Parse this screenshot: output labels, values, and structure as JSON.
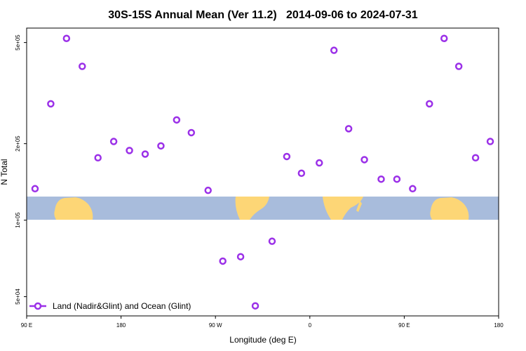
{
  "chart_data": {
    "type": "scatter",
    "title": "30S-15S Annual Mean (Ver 11.2)   2014-09-06 to 2024-07-31",
    "x_label": "Longitude (deg E)",
    "y_label": "N Total",
    "log_y": true,
    "legend": "lower left",
    "grid": false,
    "xlim": [
      90,
      540
    ],
    "xticks": [
      {
        "value": 90,
        "label": "90 E"
      },
      180,
      {
        "value": 270,
        "label": "90 W"
      },
      {
        "value": 360,
        "label": "0"
      },
      {
        "value": 450,
        "label": "90 E"
      },
      {
        "value": 540,
        "label": "180"
      }
    ],
    "ylim": [
      42000,
      570000
    ],
    "yticks": [
      {
        "value": 50000,
        "label": "5e+04"
      },
      {
        "value": 100000,
        "label": "1e+05"
      },
      {
        "value": 200000,
        "label": "2e+05"
      },
      {
        "value": 500000,
        "label": "5e+05"
      }
    ],
    "series": [
      {
        "name": "Land (Nadir&Glint) and Ocean (Glint)",
        "color": "#9b30e8",
        "x": [
          98,
          113,
          128,
          143,
          158,
          173,
          188,
          203,
          218,
          233,
          247,
          263,
          277,
          294,
          308,
          324,
          338,
          352,
          369,
          383,
          397,
          412,
          428,
          443,
          458,
          474,
          488,
          502,
          518,
          532
        ],
        "values": [
          133000,
          287000,
          519000,
          403000,
          176000,
          204000,
          188000,
          182000,
          196000,
          248000,
          221000,
          131000,
          69000,
          71800,
          46000,
          82600,
          178000,
          153000,
          168000,
          466000,
          229000,
          173000,
          145000,
          145000,
          133000,
          287000,
          519000,
          403000,
          176000,
          204000
        ]
      }
    ]
  }
}
